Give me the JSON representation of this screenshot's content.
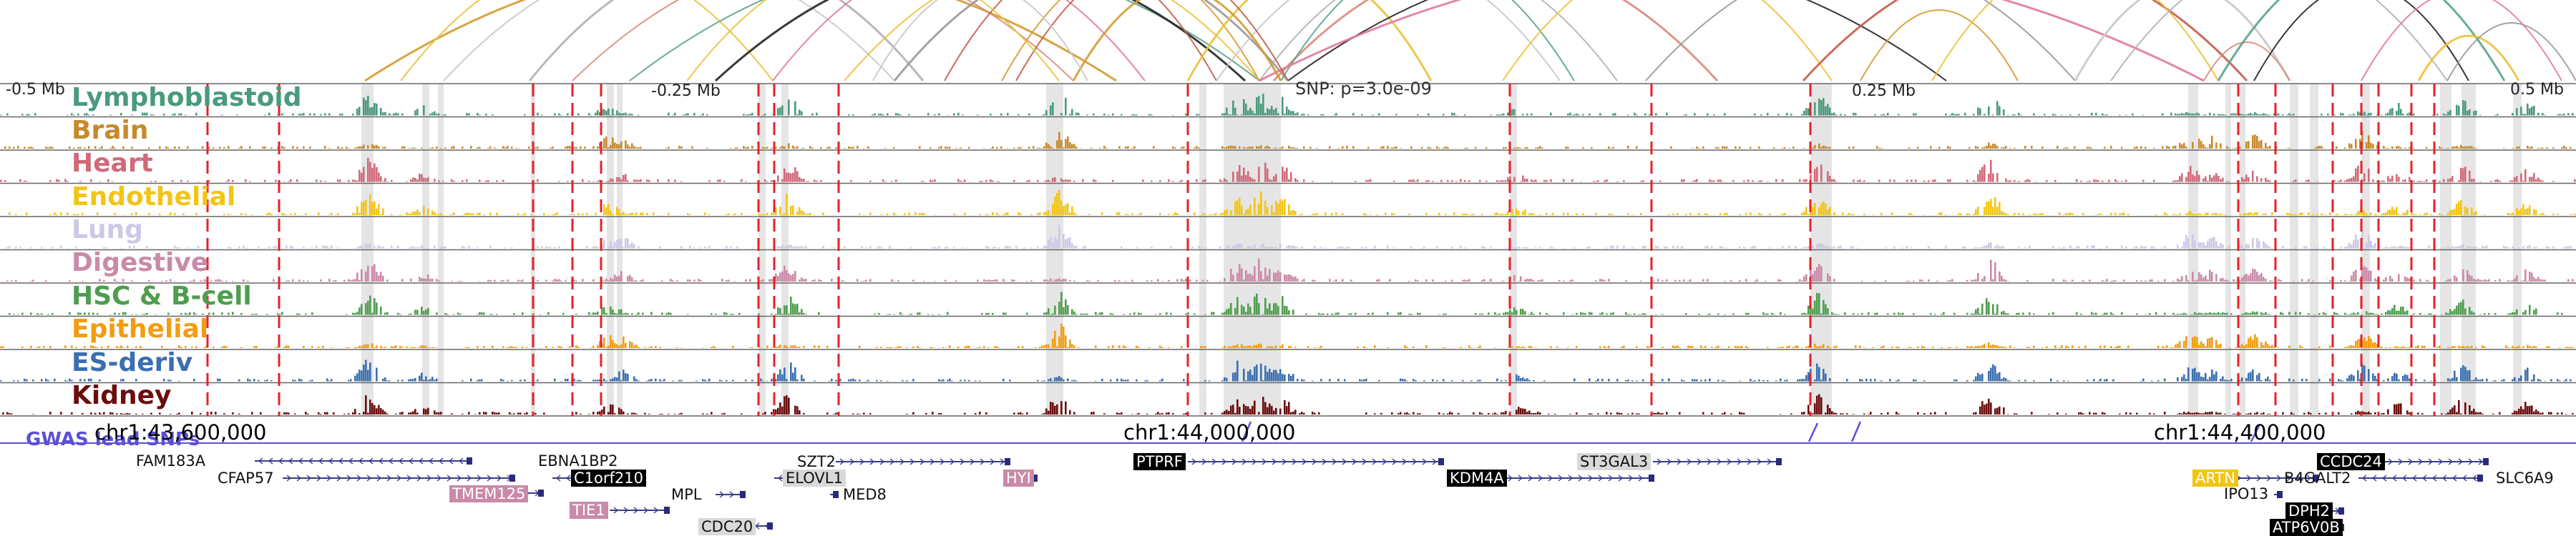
{
  "position_labels": [
    {
      "text": "-0.5 Mb"
    },
    {
      "text": "-0.25 Mb"
    },
    {
      "text": "SNP: p=3.0e-09"
    },
    {
      "text": "0.25 Mb"
    },
    {
      "text": "0.5 Mb"
    }
  ],
  "tracks": [
    {
      "name": "Lymphoblastoid",
      "color": "#4a9a7c"
    },
    {
      "name": "Brain",
      "color": "#c68a2c"
    },
    {
      "name": "Heart",
      "color": "#d06a7a"
    },
    {
      "name": "Endothelial",
      "color": "#f2c515"
    },
    {
      "name": "Lung",
      "color": "#cdc8e6"
    },
    {
      "name": "Digestive",
      "color": "#c98aa8"
    },
    {
      "name": "HSC & B-cell",
      "color": "#4f9d4f"
    },
    {
      "name": "Epithelial",
      "color": "#f39c12"
    },
    {
      "name": "ES-deriv",
      "color": "#3b6fb0"
    },
    {
      "name": "Kidney",
      "color": "#6b0d0d"
    }
  ],
  "gwas_label": "GWAS lead SNPs",
  "chromosome_labels": [
    {
      "text": "chr1:43,600,000"
    },
    {
      "text": "chr1:44,000,000"
    },
    {
      "text": "chr1:44,400,000"
    }
  ],
  "genes": [
    {
      "name": "FAM183A",
      "style": "plain",
      "bg": ""
    },
    {
      "name": "EBNA1BP2",
      "style": "plain",
      "bg": ""
    },
    {
      "name": "CFAP57",
      "style": "plain",
      "bg": ""
    },
    {
      "name": "C1orf210",
      "style": "box",
      "bg": "#000000"
    },
    {
      "name": "TMEM125",
      "style": "box",
      "bg": "#c98aa8"
    },
    {
      "name": "MPL",
      "style": "plain",
      "bg": ""
    },
    {
      "name": "TIE1",
      "style": "box",
      "bg": "#c98aa8"
    },
    {
      "name": "CDC20",
      "style": "box",
      "bg": "#d9d9d9"
    },
    {
      "name": "SZT2",
      "style": "plain",
      "bg": ""
    },
    {
      "name": "ELOVL1",
      "style": "box",
      "bg": "#d9d9d9"
    },
    {
      "name": "MED8",
      "style": "plain",
      "bg": ""
    },
    {
      "name": "HYI",
      "style": "box",
      "bg": "#c98aa8"
    },
    {
      "name": "PTPRF",
      "style": "box",
      "bg": "#000000"
    },
    {
      "name": "KDM4A",
      "style": "box",
      "bg": "#000000"
    },
    {
      "name": "ST3GAL3",
      "style": "box",
      "bg": "#d9d9d9"
    },
    {
      "name": "CCDC24",
      "style": "box",
      "bg": "#000000"
    },
    {
      "name": "ARTN",
      "style": "box",
      "bg": "#f2c515"
    },
    {
      "name": "B4GALT2",
      "style": "plain",
      "bg": ""
    },
    {
      "name": "SLC6A9",
      "style": "plain",
      "bg": ""
    },
    {
      "name": "IPO13",
      "style": "plain",
      "bg": ""
    },
    {
      "name": "DPH2",
      "style": "box",
      "bg": "#000000"
    },
    {
      "name": "ATP6V0B",
      "style": "box",
      "bg": "#000000"
    }
  ],
  "colors": {
    "red_dash": "#e8202a",
    "gray_band": "#dcdcdc",
    "gene_line": "#3a3a8c",
    "gwas": "#5b4fd6"
  }
}
